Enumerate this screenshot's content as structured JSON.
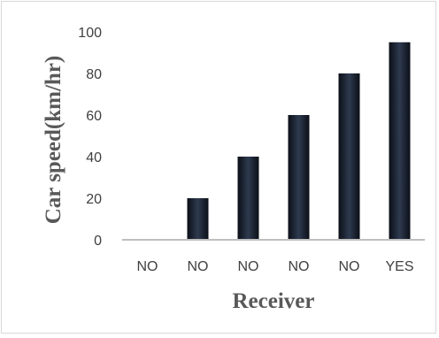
{
  "chart_data": {
    "type": "bar",
    "categories": [
      "NO",
      "NO",
      "NO",
      "NO",
      "NO",
      "YES"
    ],
    "values": [
      0,
      20,
      40,
      60,
      80,
      95
    ],
    "xlabel": "Receiver",
    "ylabel": "Car speed(km/hr)",
    "ylim": [
      0,
      100
    ],
    "yticks": [
      0,
      20,
      40,
      60,
      80,
      100
    ],
    "grid": false,
    "legend": "none",
    "colors": {
      "bar_edge": "#0b0f17",
      "bar_center": "#2e3a4f",
      "axis": "#bfbfbf"
    }
  }
}
